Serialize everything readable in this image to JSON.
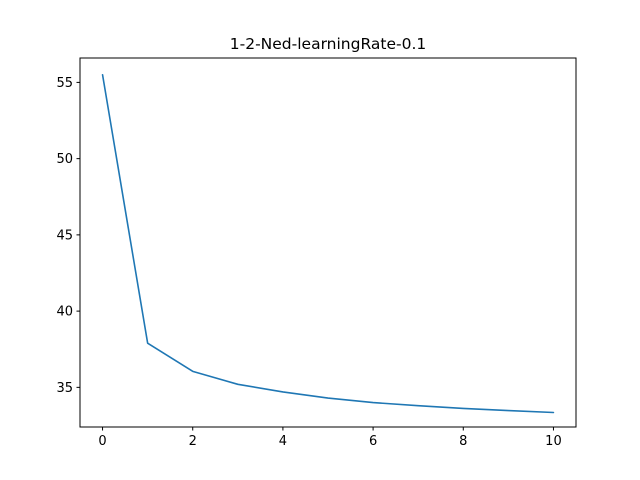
{
  "chart_data": {
    "type": "line",
    "title": "1-2-Ned-learningRate-0.1",
    "xlabel": "",
    "ylabel": "",
    "xlim": [
      -0.5,
      10.5
    ],
    "ylim": [
      32.4,
      56.6
    ],
    "xticks": [
      0,
      2,
      4,
      6,
      8,
      10
    ],
    "yticks": [
      35,
      40,
      45,
      50,
      55
    ],
    "grid": false,
    "line_color": "#1f77b4",
    "series": [
      {
        "x": [
          0,
          1,
          2,
          3,
          4,
          5,
          6,
          7,
          8,
          9,
          10
        ],
        "values": [
          55.5,
          37.9,
          36.05,
          35.2,
          34.7,
          34.3,
          34.0,
          33.8,
          33.62,
          33.48,
          33.35
        ]
      }
    ]
  }
}
